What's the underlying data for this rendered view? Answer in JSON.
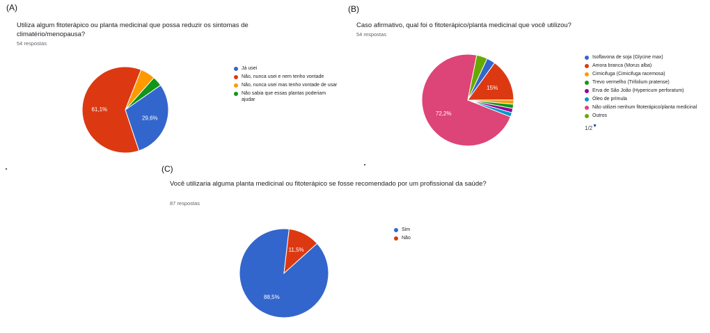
{
  "panels": {
    "a": {
      "letter": "(A)",
      "title": "Utiliza algum fitoterápico ou planta medicinal que possa reduzir os sintomas de climatério/menopausa?",
      "count": "54 respostas"
    },
    "b": {
      "letter": "(B)",
      "title": "Caso afirmativo, qual foi o fitoterápico/planta medicinal que você utilizou?",
      "count": "54 respostas"
    },
    "c": {
      "letter": "(C)",
      "title": "Você utilizaria alguma planta medicinal ou fitoterápico se fosse recomendado por um profissional da saúde?",
      "count": "87 respostas"
    }
  },
  "chart_data": [
    {
      "type": "pie",
      "panel": "a",
      "labels": [
        "Já usei",
        "Não, nunca usei e nem tenho vontade",
        "Não, nunca usei mas tenho vontade de usar",
        "Não sabia que essas plantas poderiam ajudar"
      ],
      "values": [
        29.6,
        61.1,
        5.6,
        3.7
      ],
      "value_labels": [
        "29,6%",
        "61,1%",
        "",
        ""
      ],
      "colors": [
        "#3366cc",
        "#dc3912",
        "#ff9900",
        "#109618"
      ]
    },
    {
      "type": "pie",
      "panel": "b",
      "labels": [
        "Isoflavona de soja (Glycine max)",
        "Amora branca (Morus alba)",
        "Cimicifuga (Cimicifuga racemosa)",
        "Trevo vermelho (Trifolium pratense)",
        "Erva de São João (Hypericum perforatum)",
        "Óleo de prímula",
        "Não utilizei nenhum fitoterápico/planta medicinal",
        "Outros"
      ],
      "values": [
        3.0,
        15.0,
        1.5,
        1.5,
        1.5,
        1.5,
        72.2,
        3.8
      ],
      "value_labels": [
        "",
        "15%",
        "",
        "",
        "",
        "",
        "72,2%",
        ""
      ],
      "colors": [
        "#3366cc",
        "#dc3912",
        "#ff9900",
        "#109618",
        "#990099",
        "#0099c6",
        "#dd4477",
        "#66aa00"
      ],
      "pager": "1/2"
    },
    {
      "type": "pie",
      "panel": "c",
      "labels": [
        "Sim",
        "Não"
      ],
      "values": [
        88.5,
        11.5
      ],
      "value_labels": [
        "88,5%",
        "11,5%"
      ],
      "colors": [
        "#3366cc",
        "#dc3912"
      ]
    }
  ]
}
